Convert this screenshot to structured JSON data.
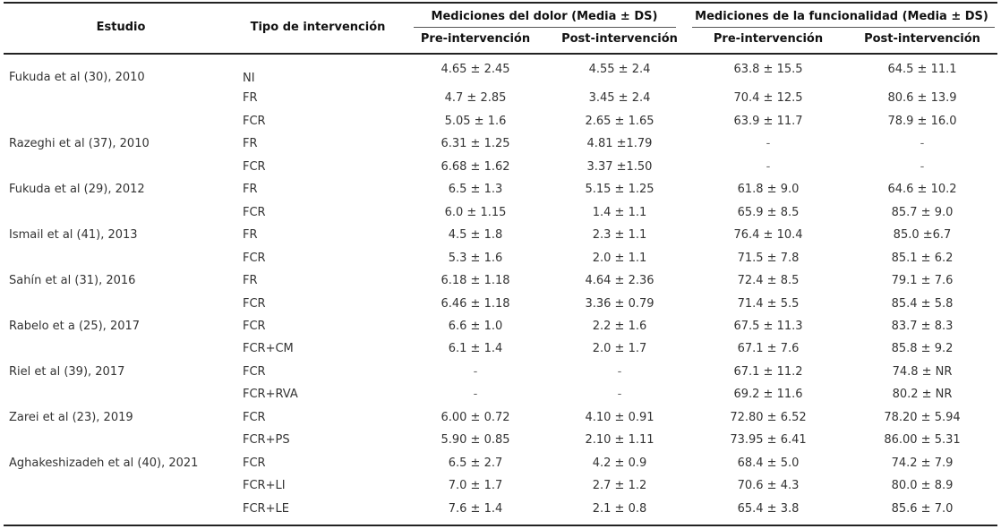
{
  "headers": {
    "estudio": "Estudio",
    "tipo": "Tipo de intervención",
    "dolor": "Mediciones del dolor (Media ± DS)",
    "func": "Mediciones de la funcionalidad (Media ± DS)",
    "pre": "Pre-intervención",
    "post": "Post-intervención"
  },
  "rows": [
    {
      "study": "Fukuda et al (30), 2010",
      "type": "NI",
      "pain_pre": "4.65 ± 2.45",
      "pain_post": "4.55 ± 2.4",
      "func_pre": "63.8 ± 15.5",
      "func_post": "64.5 ± 11.1"
    },
    {
      "study": "",
      "type": "FR",
      "pain_pre": "4.7 ± 2.85",
      "pain_post": "3.45 ± 2.4",
      "func_pre": "70.4 ± 12.5",
      "func_post": "80.6 ± 13.9"
    },
    {
      "study": "",
      "type": "FCR",
      "pain_pre": "5.05 ± 1.6",
      "pain_post": "2.65 ± 1.65",
      "func_pre": "63.9 ± 11.7",
      "func_post": "78.9 ± 16.0"
    },
    {
      "study": "Razeghi et al (37), 2010",
      "type": "FR",
      "pain_pre": "6.31 ± 1.25",
      "pain_post": "4.81 ±1.79",
      "func_pre": "-",
      "func_post": "-"
    },
    {
      "study": "",
      "type": "FCR",
      "pain_pre": "6.68 ± 1.62",
      "pain_post": "3.37 ±1.50",
      "func_pre": "-",
      "func_post": "-"
    },
    {
      "study": "Fukuda et al (29), 2012",
      "type": "FR",
      "pain_pre": "6.5 ± 1.3",
      "pain_post": "5.15 ± 1.25",
      "func_pre": "61.8 ± 9.0",
      "func_post": "64.6 ± 10.2"
    },
    {
      "study": "",
      "type": "FCR",
      "pain_pre": "6.0 ± 1.15",
      "pain_post": "1.4 ± 1.1",
      "func_pre": "65.9 ± 8.5",
      "func_post": "85.7 ± 9.0"
    },
    {
      "study": "Ismail et al (41), 2013",
      "type": "FR",
      "pain_pre": "4.5 ± 1.8",
      "pain_post": "2.3 ± 1.1",
      "func_pre": "76.4 ± 10.4",
      "func_post": "85.0 ±6.7"
    },
    {
      "study": "",
      "type": "FCR",
      "pain_pre": "5.3 ± 1.6",
      "pain_post": "2.0 ± 1.1",
      "func_pre": "71.5 ± 7.8",
      "func_post": "85.1 ± 6.2"
    },
    {
      "study": "Sahín et al (31), 2016",
      "type": "FR",
      "pain_pre": "6.18 ± 1.18",
      "pain_post": "4.64 ± 2.36",
      "func_pre": "72.4 ± 8.5",
      "func_post": "79.1 ± 7.6"
    },
    {
      "study": "",
      "type": "FCR",
      "pain_pre": "6.46 ± 1.18",
      "pain_post": "3.36 ± 0.79",
      "func_pre": "71.4 ± 5.5",
      "func_post": "85.4 ± 5.8"
    },
    {
      "study": "Rabelo et a (25), 2017",
      "type": "FCR",
      "pain_pre": "6.6 ± 1.0",
      "pain_post": "2.2 ± 1.6",
      "func_pre": "67.5 ± 11.3",
      "func_post": "83.7 ± 8.3"
    },
    {
      "study": "",
      "type": "FCR+CM",
      "pain_pre": "6.1 ± 1.4",
      "pain_post": "2.0 ± 1.7",
      "func_pre": "67.1 ± 7.6",
      "func_post": "85.8 ± 9.2"
    },
    {
      "study": "Riel et al (39), 2017",
      "type": "FCR",
      "pain_pre": "-",
      "pain_post": "-",
      "func_pre": "67.1 ± 11.2",
      "func_post": "74.8 ± NR"
    },
    {
      "study": "",
      "type": "FCR+RVA",
      "pain_pre": "-",
      "pain_post": "-",
      "func_pre": "69.2 ± 11.6",
      "func_post": "80.2 ± NR"
    },
    {
      "study": "Zarei et al (23), 2019",
      "type": "FCR",
      "pain_pre": "6.00 ± 0.72",
      "pain_post": "4.10 ± 0.91",
      "func_pre": "72.80 ± 6.52",
      "func_post": "78.20 ± 5.94"
    },
    {
      "study": "",
      "type": "FCR+PS",
      "pain_pre": "5.90 ± 0.85",
      "pain_post": "2.10 ± 1.11",
      "func_pre": "73.95 ± 6.41",
      "func_post": "86.00 ± 5.31"
    },
    {
      "study": "Aghakeshizadeh et al (40), 2021",
      "type": "FCR",
      "pain_pre": "6.5 ± 2.7",
      "pain_post": "4.2 ± 0.9",
      "func_pre": "68.4 ± 5.0",
      "func_post": "74.2 ± 7.9"
    },
    {
      "study": "",
      "type": "FCR+LI",
      "pain_pre": "7.0 ± 1.7",
      "pain_post": "2.7 ± 1.2",
      "func_pre": "70.6 ± 4.3",
      "func_post": "80.0 ± 8.9"
    },
    {
      "study": "",
      "type": "FCR+LE",
      "pain_pre": "7.6 ± 1.4",
      "pain_post": "2.1 ± 0.8",
      "func_pre": "65.4 ± 3.8",
      "func_post": "85.6 ± 7.0"
    }
  ]
}
